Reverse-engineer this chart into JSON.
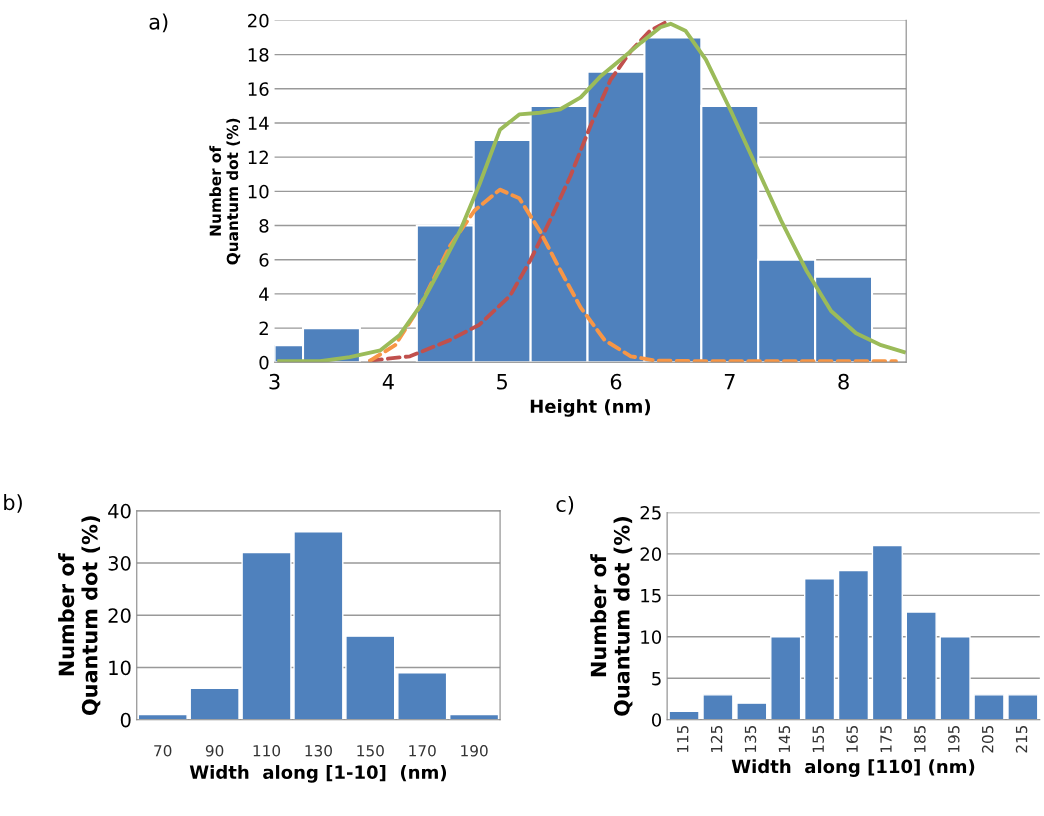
{
  "chart_data": [
    {
      "type": "histogram",
      "title": "a)",
      "xlabel": "Height (nm)",
      "ylabel": "Number of\nQuantum dot (%)",
      "bins": [
        3,
        3.25,
        3.75,
        4.25,
        4.75,
        5.25,
        5.75,
        6.25,
        6.75,
        7.25,
        7.75,
        8.25
      ],
      "values": [
        1,
        2,
        0,
        8,
        13,
        15,
        17,
        19,
        15,
        6,
        5
      ],
      "color": "#4f81bd",
      "xlim": [
        3,
        8.55
      ],
      "xticks": [
        3,
        4,
        5,
        6,
        7,
        8
      ],
      "ylim": [
        0,
        20
      ],
      "yticks": [
        0,
        2,
        4,
        6,
        8,
        10,
        12,
        14,
        16,
        18,
        20
      ],
      "grid": "y",
      "series": [
        {
          "type": "line",
          "color": "#c0504d",
          "line_style": "dashed",
          "x": [
            3.84,
            4.19,
            4.54,
            4.8,
            5.07,
            5.25,
            5.42,
            5.6,
            5.78,
            5.95,
            6.13,
            6.3,
            6.44
          ],
          "values": [
            0.1,
            0.35,
            1.3,
            2.2,
            3.9,
            6.0,
            8.3,
            10.9,
            13.9,
            16.5,
            18.2,
            19.4,
            19.9
          ]
        },
        {
          "type": "line",
          "color": "#f79646",
          "line_style": "dashed",
          "x": [
            3.84,
            4.06,
            4.28,
            4.54,
            4.76,
            4.98,
            5.15,
            5.33,
            5.51,
            5.69,
            5.9,
            6.13,
            6.35,
            6.79,
            7.45,
            8.46
          ],
          "values": [
            0.1,
            1.0,
            3.3,
            6.8,
            8.9,
            10.1,
            9.6,
            7.7,
            5.4,
            3.2,
            1.3,
            0.35,
            0.1,
            0.06,
            0.06,
            0.06
          ]
        },
        {
          "type": "line",
          "color": "#9bbb59",
          "line_style": "solid",
          "x": [
            3.04,
            3.4,
            3.66,
            3.93,
            4.1,
            4.28,
            4.45,
            4.63,
            4.8,
            4.98,
            5.15,
            5.33,
            5.51,
            5.69,
            5.86,
            6.04,
            6.22,
            6.39,
            6.48,
            6.61,
            6.79,
            7.01,
            7.23,
            7.45,
            7.67,
            7.89,
            8.11,
            8.33,
            8.53
          ],
          "values": [
            0.06,
            0.06,
            0.3,
            0.7,
            1.6,
            3.3,
            5.4,
            7.7,
            10.4,
            13.6,
            14.5,
            14.6,
            14.8,
            15.5,
            16.7,
            17.7,
            18.7,
            19.6,
            19.8,
            19.4,
            17.7,
            14.7,
            11.5,
            8.3,
            5.4,
            3.0,
            1.7,
            1.0,
            0.6
          ]
        }
      ]
    },
    {
      "type": "bar",
      "title": "b)",
      "xlabel": "Width  along [1-10]  (nm)",
      "ylabel": "Number of\nQuantum dot (%)",
      "categories": [
        "70",
        "90",
        "110",
        "130",
        "150",
        "170",
        "190"
      ],
      "values": [
        1,
        6,
        32,
        36,
        16,
        9,
        1
      ],
      "color": "#4f81bd",
      "ylim": [
        0,
        40
      ],
      "yticks": [
        0,
        10,
        20,
        30,
        40
      ],
      "grid": "y"
    },
    {
      "type": "bar",
      "title": "c)",
      "xlabel": "Width  along [110] (nm)",
      "ylabel": "Number of\nQuantum dot (%)",
      "categories": [
        "115",
        "125",
        "135",
        "145",
        "155",
        "165",
        "175",
        "185",
        "195",
        "205",
        "215"
      ],
      "values": [
        1,
        3,
        2,
        10,
        17,
        18,
        21,
        13,
        10,
        3,
        3
      ],
      "color": "#4f81bd",
      "ylim": [
        0,
        25
      ],
      "yticks": [
        0,
        5,
        10,
        15,
        20,
        25
      ],
      "grid": "y"
    }
  ]
}
